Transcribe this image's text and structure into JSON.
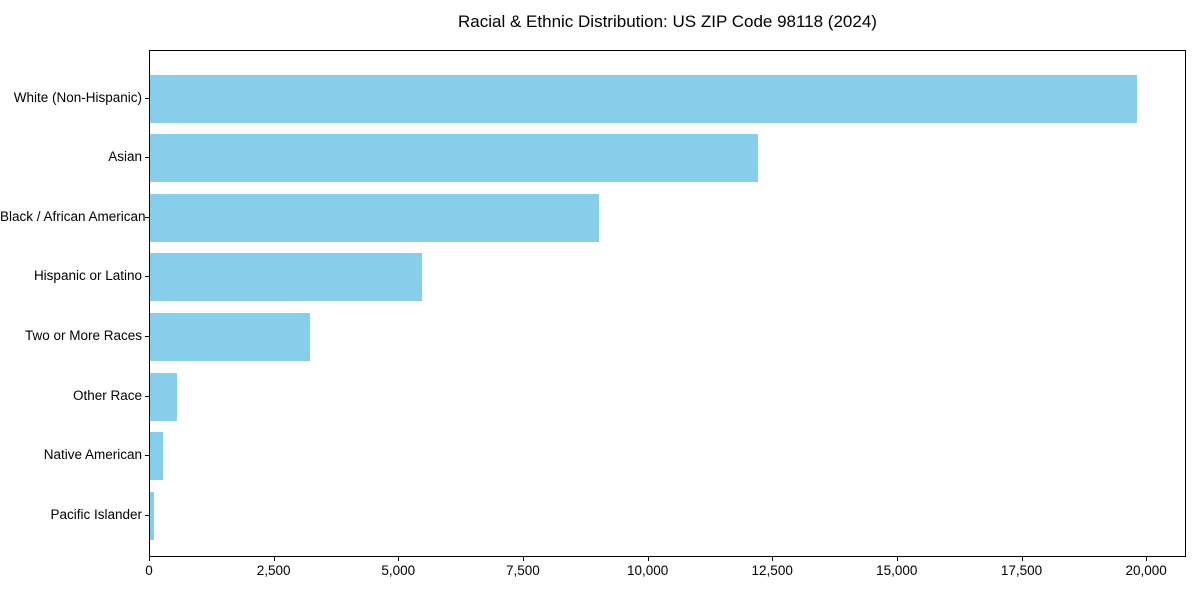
{
  "chart_data": {
    "type": "bar",
    "orientation": "horizontal",
    "title": "Racial & Ethnic Distribution: US ZIP Code 98118 (2024)",
    "categories": [
      "White (Non-Hispanic)",
      "Asian",
      "Black / African American",
      "Hispanic or Latino",
      "Two or More Races",
      "Other Race",
      "Native American",
      "Pacific Islander"
    ],
    "values": [
      19800,
      12200,
      9000,
      5450,
      3200,
      540,
      250,
      70
    ],
    "xlabel": "",
    "ylabel": "",
    "xlim": [
      0,
      20800
    ],
    "x_ticks": [
      0,
      2500,
      5000,
      7500,
      10000,
      12500,
      15000,
      17500,
      20000
    ],
    "x_tick_labels": [
      "0",
      "2,500",
      "5,000",
      "7,500",
      "10,000",
      "12,500",
      "15,000",
      "17,500",
      "20,000"
    ],
    "bar_color": "#87CEEB",
    "grid": false,
    "legend": null
  }
}
